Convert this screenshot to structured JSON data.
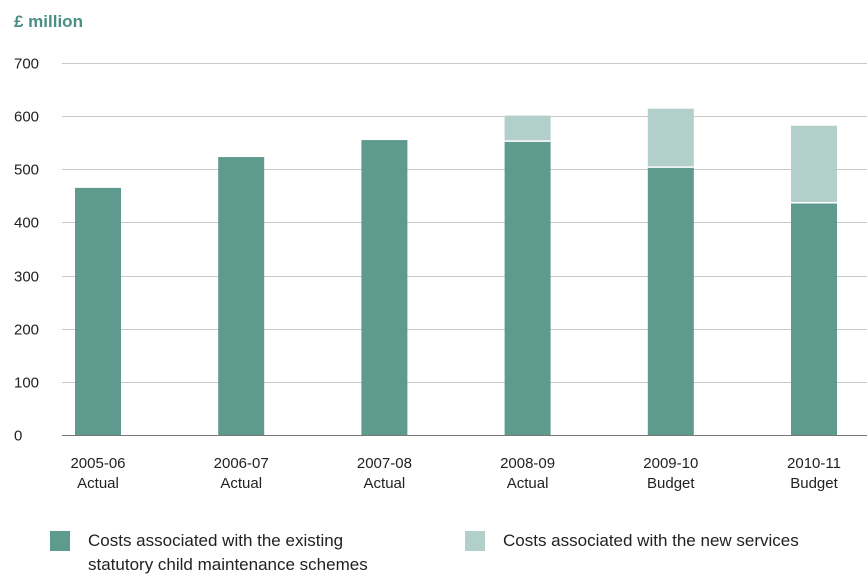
{
  "chart_data": {
    "type": "bar",
    "stacked": true,
    "title": "£ million",
    "xlabel": "",
    "ylabel": "",
    "ylim": [
      0,
      700
    ],
    "yticks": [
      0,
      100,
      200,
      300,
      400,
      500,
      600,
      700
    ],
    "grid": true,
    "legend_position": "bottom",
    "categories": [
      [
        "2005-06",
        "Actual"
      ],
      [
        "2006-07",
        "Actual"
      ],
      [
        "2007-08",
        "Actual"
      ],
      [
        "2008-09",
        "Actual"
      ],
      [
        "2009-10",
        "Budget"
      ],
      [
        "2010-11",
        "Budget"
      ]
    ],
    "series": [
      {
        "name": "Costs associated with the existing statutory child maintenance schemes",
        "color": "#5f9a8f",
        "values": [
          465,
          523,
          555,
          553,
          504,
          437
        ]
      },
      {
        "name": "Costs associated with the new services",
        "color": "#b3cfc9",
        "values": [
          0,
          0,
          0,
          48,
          110,
          145
        ]
      }
    ]
  },
  "legend": {
    "existing_line1": "Costs associated with the existing",
    "existing_line2": "statutory child maintenance schemes",
    "new": "Costs associated with the new services"
  }
}
